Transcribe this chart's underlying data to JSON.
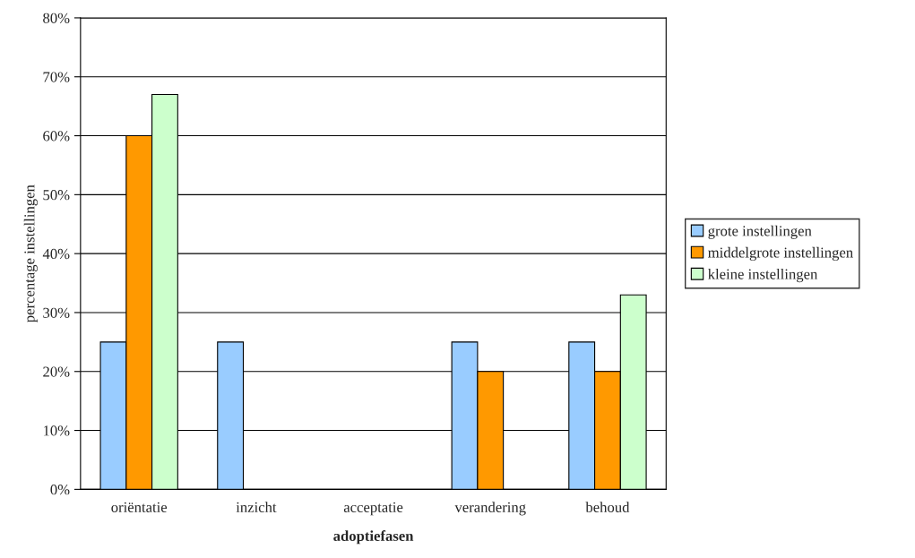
{
  "chart_data": {
    "type": "bar",
    "xlabel": "adoptiefasen",
    "ylabel": "percentage instellingen",
    "categories": [
      "oriëntatie",
      "inzicht",
      "acceptatie",
      "verandering",
      "behoud"
    ],
    "series": [
      {
        "name": "grote instellingen",
        "color": "#99ccff",
        "values": [
          25,
          25,
          null,
          25,
          25
        ]
      },
      {
        "name": "middelgrote instellingen",
        "color": "#ff9900",
        "values": [
          60,
          null,
          null,
          20,
          20
        ]
      },
      {
        "name": "kleine instellingen",
        "color": "#ccffcc",
        "values": [
          67,
          null,
          null,
          null,
          33
        ]
      }
    ],
    "ylim": [
      0,
      80
    ],
    "yticks": [
      {
        "value": 0,
        "label": "0%"
      },
      {
        "value": 10,
        "label": "10%"
      },
      {
        "value": 20,
        "label": "20%"
      },
      {
        "value": 30,
        "label": "30%"
      },
      {
        "value": 40,
        "label": "40%"
      },
      {
        "value": 50,
        "label": "50%"
      },
      {
        "value": 60,
        "label": "60%"
      },
      {
        "value": 70,
        "label": "70%"
      },
      {
        "value": 80,
        "label": "80%"
      }
    ],
    "grid": "y",
    "legend": "right"
  }
}
